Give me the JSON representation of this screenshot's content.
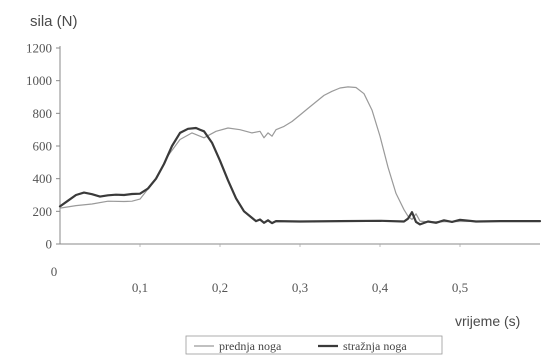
{
  "chart_data": {
    "type": "line",
    "ylabel": "sila (N)",
    "xlabel": "vrijeme (s)",
    "x_origin_label": "0",
    "xlim": [
      0,
      0.6
    ],
    "ylim": [
      0,
      1200
    ],
    "x_ticks": [
      {
        "value": 0.1,
        "label": "0,1"
      },
      {
        "value": 0.2,
        "label": "0,2"
      },
      {
        "value": 0.3,
        "label": "0,3"
      },
      {
        "value": 0.4,
        "label": "0,4"
      },
      {
        "value": 0.5,
        "label": "0,5"
      }
    ],
    "y_ticks": [
      {
        "value": 0,
        "label": "0"
      },
      {
        "value": 200,
        "label": "200"
      },
      {
        "value": 400,
        "label": "400"
      },
      {
        "value": 600,
        "label": "600"
      },
      {
        "value": 800,
        "label": "800"
      },
      {
        "value": 1000,
        "label": "1000"
      },
      {
        "value": 1200,
        "label": "1200"
      }
    ],
    "grid": false,
    "legend_position": "bottom-right",
    "series": [
      {
        "name": "prednja noga",
        "color": "#9a9a9a",
        "width": 1.2,
        "points": [
          [
            0,
            220
          ],
          [
            0.02,
            235
          ],
          [
            0.04,
            245
          ],
          [
            0.06,
            262
          ],
          [
            0.08,
            260
          ],
          [
            0.09,
            262
          ],
          [
            0.1,
            275
          ],
          [
            0.12,
            400
          ],
          [
            0.135,
            540
          ],
          [
            0.15,
            640
          ],
          [
            0.165,
            680
          ],
          [
            0.18,
            650
          ],
          [
            0.195,
            690
          ],
          [
            0.21,
            710
          ],
          [
            0.225,
            700
          ],
          [
            0.24,
            680
          ],
          [
            0.25,
            690
          ],
          [
            0.255,
            650
          ],
          [
            0.26,
            680
          ],
          [
            0.265,
            660
          ],
          [
            0.27,
            700
          ],
          [
            0.28,
            720
          ],
          [
            0.29,
            750
          ],
          [
            0.3,
            790
          ],
          [
            0.31,
            830
          ],
          [
            0.32,
            870
          ],
          [
            0.33,
            910
          ],
          [
            0.34,
            935
          ],
          [
            0.35,
            955
          ],
          [
            0.36,
            962
          ],
          [
            0.37,
            958
          ],
          [
            0.38,
            920
          ],
          [
            0.39,
            820
          ],
          [
            0.4,
            660
          ],
          [
            0.41,
            470
          ],
          [
            0.42,
            310
          ],
          [
            0.43,
            210
          ],
          [
            0.435,
            170
          ],
          [
            0.44,
            150
          ],
          [
            0.445,
            185
          ],
          [
            0.45,
            140
          ],
          [
            0.46,
            135
          ],
          [
            0.5,
            138
          ],
          [
            0.55,
            140
          ],
          [
            0.6,
            140
          ]
        ]
      },
      {
        "name": "stražnja noga",
        "color": "#3a3a3a",
        "width": 2.2,
        "points": [
          [
            0,
            230
          ],
          [
            0.01,
            265
          ],
          [
            0.02,
            300
          ],
          [
            0.03,
            315
          ],
          [
            0.04,
            305
          ],
          [
            0.05,
            290
          ],
          [
            0.06,
            298
          ],
          [
            0.07,
            302
          ],
          [
            0.08,
            300
          ],
          [
            0.09,
            306
          ],
          [
            0.1,
            308
          ],
          [
            0.11,
            340
          ],
          [
            0.12,
            400
          ],
          [
            0.13,
            490
          ],
          [
            0.14,
            600
          ],
          [
            0.15,
            680
          ],
          [
            0.16,
            705
          ],
          [
            0.17,
            710
          ],
          [
            0.175,
            700
          ],
          [
            0.18,
            690
          ],
          [
            0.19,
            620
          ],
          [
            0.2,
            510
          ],
          [
            0.21,
            390
          ],
          [
            0.22,
            280
          ],
          [
            0.23,
            200
          ],
          [
            0.24,
            160
          ],
          [
            0.245,
            140
          ],
          [
            0.25,
            150
          ],
          [
            0.255,
            130
          ],
          [
            0.26,
            145
          ],
          [
            0.265,
            128
          ],
          [
            0.27,
            140
          ],
          [
            0.3,
            138
          ],
          [
            0.35,
            140
          ],
          [
            0.4,
            142
          ],
          [
            0.43,
            138
          ],
          [
            0.435,
            155
          ],
          [
            0.44,
            195
          ],
          [
            0.445,
            135
          ],
          [
            0.45,
            120
          ],
          [
            0.46,
            138
          ],
          [
            0.47,
            130
          ],
          [
            0.48,
            145
          ],
          [
            0.49,
            135
          ],
          [
            0.5,
            148
          ],
          [
            0.52,
            138
          ],
          [
            0.55,
            140
          ],
          [
            0.6,
            140
          ]
        ]
      }
    ]
  }
}
